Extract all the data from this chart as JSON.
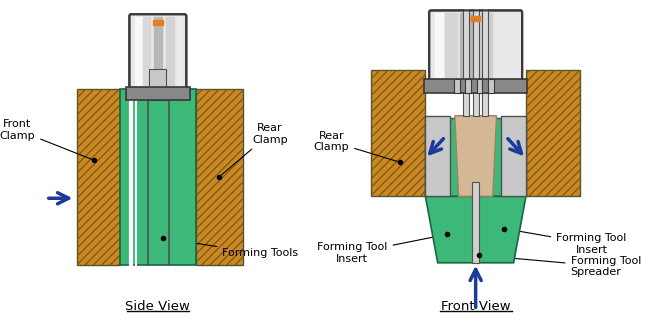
{
  "bg_color": "#ffffff",
  "wood_color": "#c8892a",
  "wood_hatch": "////",
  "wood_hatch_color": "#8b5a00",
  "green_color": "#3cb878",
  "gray_light": "#c8c8c8",
  "gray_medium": "#888888",
  "gray_dark": "#505050",
  "gray_darker": "#383838",
  "silver_light": "#e8e8e8",
  "tan_color": "#d4b896",
  "blue_arrow": "#1a3a9c",
  "label_color": "#000000",
  "side_view_label": "Side View",
  "front_view_label": "Front View",
  "front_clamp_label": "Front\nClamp",
  "rear_clamp_label_side": "Rear\nClamp",
  "rear_clamp_label_front": "Rear\nClamp",
  "forming_tools_label": "Forming Tools",
  "forming_tool_insert_left": "Forming Tool\nInsert",
  "forming_tool_insert_right": "Forming Tool\nInsert",
  "forming_tool_spreader": "Forming Tool\nSpreader"
}
